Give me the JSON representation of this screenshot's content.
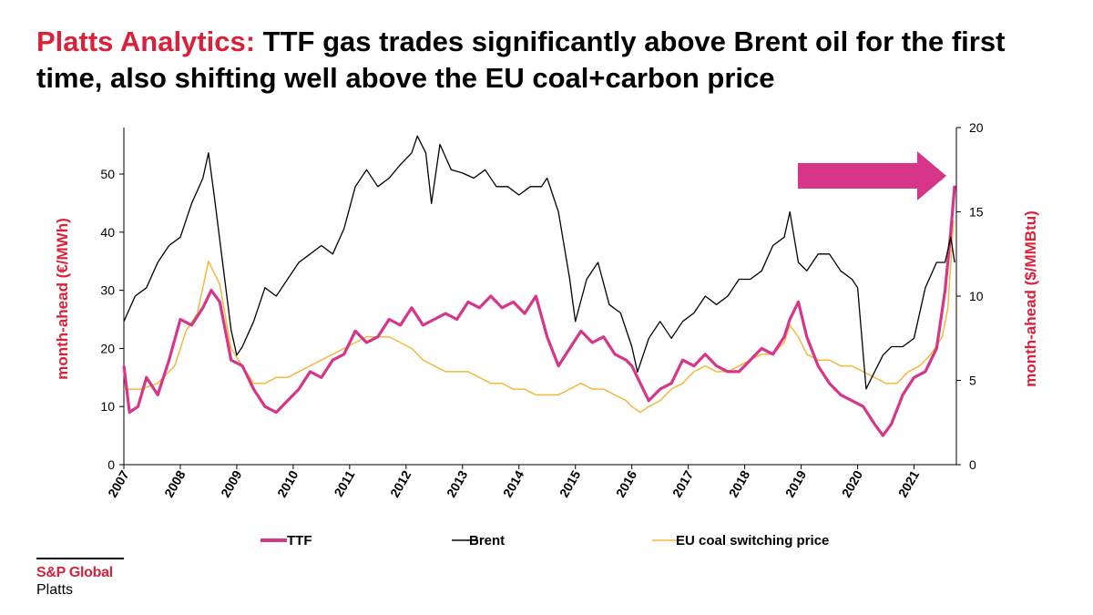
{
  "header": {
    "brand": "Platts Analytics:",
    "headline": "TTF gas trades significantly above Brent oil for the first time, also shifting well above the EU coal+carbon price"
  },
  "logo": {
    "line1": "S&P Global",
    "line2": "Platts"
  },
  "colors": {
    "ttf": "#d6358a",
    "brent": "#000000",
    "coal": "#f5b93c",
    "accent_red": "#d9213a",
    "arrow": "#d6358a"
  },
  "chart_data": {
    "type": "line",
    "x_categories": [
      "2007",
      "2008",
      "2009",
      "2010",
      "2011",
      "2012",
      "2013",
      "2014",
      "2015",
      "2016",
      "2017",
      "2018",
      "2019",
      "2020",
      "2021"
    ],
    "xlim": [
      2007,
      2021.75
    ],
    "left_axis": {
      "label": "month-ahead (€/MWh)",
      "ylim": [
        0,
        58
      ],
      "ticks": [
        0,
        10,
        20,
        30,
        40,
        50
      ]
    },
    "right_axis": {
      "label": "month-ahead ($/MMBtu)",
      "ylim": [
        0,
        20
      ],
      "ticks": [
        0,
        5,
        10,
        15,
        20
      ]
    },
    "legend_position": "bottom",
    "annotation": "arrow pointing right at top-right",
    "series": [
      {
        "name": "TTF",
        "axis": "left",
        "x": [
          2007.0,
          2007.1,
          2007.25,
          2007.4,
          2007.6,
          2007.8,
          2008.0,
          2008.2,
          2008.4,
          2008.55,
          2008.7,
          2008.9,
          2009.1,
          2009.3,
          2009.5,
          2009.7,
          2009.9,
          2010.1,
          2010.3,
          2010.5,
          2010.7,
          2010.9,
          2011.1,
          2011.3,
          2011.5,
          2011.7,
          2011.9,
          2012.1,
          2012.3,
          2012.5,
          2012.7,
          2012.9,
          2013.1,
          2013.3,
          2013.5,
          2013.7,
          2013.9,
          2014.1,
          2014.3,
          2014.5,
          2014.7,
          2014.9,
          2015.1,
          2015.3,
          2015.5,
          2015.7,
          2015.9,
          2016.0,
          2016.15,
          2016.3,
          2016.5,
          2016.7,
          2016.9,
          2017.1,
          2017.3,
          2017.5,
          2017.7,
          2017.9,
          2018.1,
          2018.3,
          2018.5,
          2018.7,
          2018.8,
          2018.95,
          2019.1,
          2019.3,
          2019.5,
          2019.7,
          2019.9,
          2020.1,
          2020.3,
          2020.45,
          2020.6,
          2020.8,
          2021.0,
          2021.2,
          2021.4,
          2021.55,
          2021.65,
          2021.72
        ],
        "values": [
          17,
          9,
          10,
          15,
          12,
          18,
          25,
          24,
          27,
          30,
          28,
          18,
          17,
          13,
          10,
          9,
          11,
          13,
          16,
          15,
          18,
          19,
          23,
          21,
          22,
          25,
          24,
          27,
          24,
          25,
          26,
          25,
          28,
          27,
          29,
          27,
          28,
          26,
          29,
          22,
          17,
          20,
          23,
          21,
          22,
          19,
          18,
          17,
          14,
          11,
          13,
          14,
          18,
          17,
          19,
          17,
          16,
          16,
          18,
          20,
          19,
          22,
          25,
          28,
          22,
          17,
          14,
          12,
          11,
          10,
          7,
          5,
          7,
          12,
          15,
          16,
          20,
          30,
          40,
          48
        ]
      },
      {
        "name": "Brent",
        "axis": "right",
        "x": [
          2007.0,
          2007.2,
          2007.4,
          2007.6,
          2007.8,
          2008.0,
          2008.2,
          2008.4,
          2008.5,
          2008.6,
          2008.75,
          2008.9,
          2009.0,
          2009.1,
          2009.3,
          2009.5,
          2009.7,
          2009.9,
          2010.1,
          2010.3,
          2010.5,
          2010.7,
          2010.9,
          2011.1,
          2011.3,
          2011.5,
          2011.7,
          2011.9,
          2012.1,
          2012.2,
          2012.35,
          2012.45,
          2012.6,
          2012.8,
          2013.0,
          2013.2,
          2013.4,
          2013.6,
          2013.8,
          2014.0,
          2014.2,
          2014.4,
          2014.5,
          2014.7,
          2014.9,
          2015.0,
          2015.2,
          2015.4,
          2015.6,
          2015.8,
          2016.0,
          2016.1,
          2016.3,
          2016.5,
          2016.7,
          2016.9,
          2017.1,
          2017.3,
          2017.5,
          2017.7,
          2017.9,
          2018.1,
          2018.3,
          2018.5,
          2018.7,
          2018.8,
          2018.95,
          2019.1,
          2019.3,
          2019.5,
          2019.7,
          2019.9,
          2020.0,
          2020.15,
          2020.3,
          2020.45,
          2020.6,
          2020.8,
          2021.0,
          2021.2,
          2021.4,
          2021.55,
          2021.65,
          2021.72
        ],
        "values": [
          8.5,
          10,
          10.5,
          12,
          13,
          13.5,
          15.5,
          17,
          18.5,
          16,
          12,
          8,
          6.5,
          7,
          8.5,
          10.5,
          10,
          11,
          12,
          12.5,
          13,
          12.5,
          14,
          16.5,
          17.5,
          16.5,
          17,
          17.8,
          18.5,
          19.5,
          18.5,
          15.5,
          19,
          17.5,
          17.3,
          17,
          17.5,
          16.5,
          16.5,
          16,
          16.5,
          16.5,
          17,
          15,
          11,
          8.5,
          11,
          12,
          9.5,
          9,
          7,
          5.5,
          7.5,
          8.5,
          7.5,
          8.5,
          9,
          10,
          9.5,
          10,
          11,
          11,
          11.5,
          13,
          13.5,
          15,
          12,
          11.5,
          12.5,
          12.5,
          11.5,
          11,
          10.5,
          4.5,
          5.5,
          6.5,
          7,
          7,
          7.5,
          10.5,
          12,
          12,
          13.5,
          12
        ]
      },
      {
        "name": "EU coal switching price",
        "axis": "left",
        "x": [
          2007.0,
          2007.3,
          2007.6,
          2007.9,
          2008.1,
          2008.3,
          2008.5,
          2008.7,
          2008.9,
          2009.1,
          2009.3,
          2009.5,
          2009.7,
          2009.9,
          2010.1,
          2010.3,
          2010.5,
          2010.7,
          2010.9,
          2011.1,
          2011.3,
          2011.5,
          2011.7,
          2011.9,
          2012.1,
          2012.3,
          2012.5,
          2012.7,
          2012.9,
          2013.1,
          2013.3,
          2013.5,
          2013.7,
          2013.9,
          2014.1,
          2014.3,
          2014.5,
          2014.7,
          2014.9,
          2015.1,
          2015.3,
          2015.5,
          2015.7,
          2015.9,
          2016.0,
          2016.15,
          2016.3,
          2016.5,
          2016.7,
          2016.9,
          2017.1,
          2017.3,
          2017.5,
          2017.7,
          2017.9,
          2018.1,
          2018.3,
          2018.5,
          2018.7,
          2018.8,
          2018.95,
          2019.1,
          2019.3,
          2019.5,
          2019.7,
          2019.9,
          2020.1,
          2020.3,
          2020.5,
          2020.7,
          2020.9,
          2021.1,
          2021.3,
          2021.5,
          2021.6,
          2021.7
        ],
        "values": [
          13,
          13,
          14,
          17,
          23,
          26,
          35,
          31,
          20,
          17,
          14,
          14,
          15,
          15,
          16,
          17,
          18,
          19,
          20,
          21,
          22,
          22,
          22,
          21,
          20,
          18,
          17,
          16,
          16,
          16,
          15,
          14,
          14,
          13,
          13,
          12,
          12,
          12,
          13,
          14,
          13,
          13,
          12,
          11,
          10,
          9,
          10,
          11,
          13,
          14,
          16,
          17,
          16,
          16,
          17,
          18,
          19,
          19,
          21,
          24,
          22,
          19,
          18,
          18,
          17,
          17,
          16,
          15,
          14,
          14,
          16,
          17,
          19,
          22,
          27,
          42
        ]
      }
    ]
  }
}
